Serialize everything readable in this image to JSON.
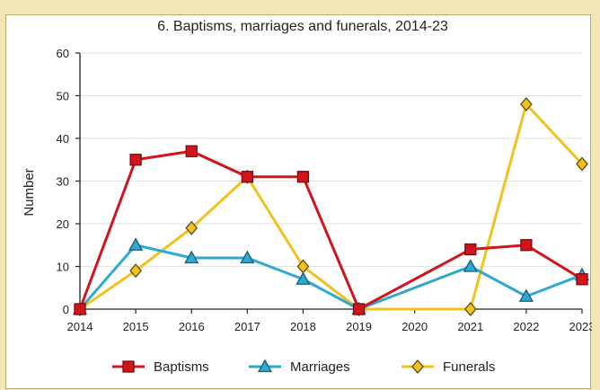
{
  "chart_data": {
    "type": "line",
    "title": "6. Baptisms, marriages and funerals, 2014-23",
    "xlabel": "",
    "ylabel": "Number",
    "x": [
      "2014",
      "2015",
      "2016",
      "2017",
      "2018",
      "2019",
      "2020",
      "2021",
      "2022",
      "2023"
    ],
    "ylim": [
      0,
      60
    ],
    "yticks": [
      0,
      10,
      20,
      30,
      40,
      50,
      60
    ],
    "grid": true,
    "legend": "bottom",
    "series": [
      {
        "name": "Baptisms",
        "color": "#d2151c",
        "marker": "square",
        "values": [
          0,
          35,
          37,
          31,
          31,
          0,
          null,
          14,
          15,
          7
        ]
      },
      {
        "name": "Marriages",
        "color": "#2fa9cf",
        "marker": "triangle",
        "values": [
          0,
          15,
          12,
          12,
          7,
          0,
          null,
          10,
          3,
          8
        ]
      },
      {
        "name": "Funerals",
        "color": "#f2c21c",
        "marker": "diamond",
        "values": [
          0,
          9,
          19,
          31,
          10,
          0,
          null,
          0,
          48,
          34
        ]
      }
    ]
  }
}
